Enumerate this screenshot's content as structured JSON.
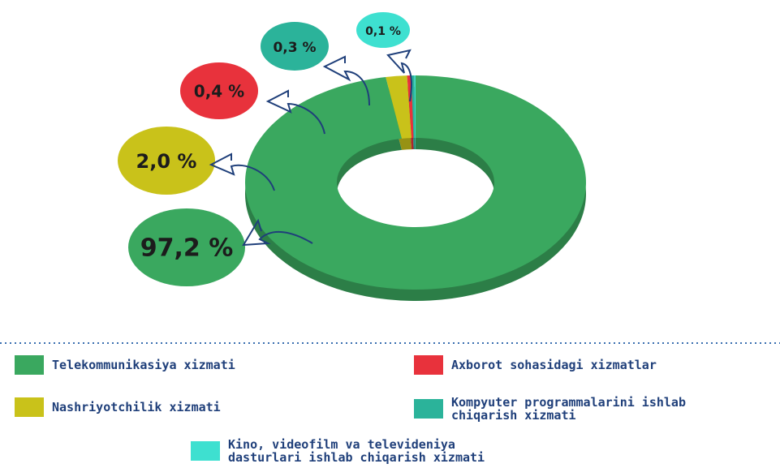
{
  "chart_data": {
    "type": "donut",
    "series": [
      {
        "name": "Telekommunikasiya xizmati",
        "color": "#3aa85f",
        "values": [
          97.2
        ],
        "value_labels": [
          "97,2 %"
        ]
      },
      {
        "name": "Nashriyotchilik xizmati",
        "color": "#c9c21a",
        "values": [
          2.0
        ],
        "value_labels": [
          "2,0 %"
        ]
      },
      {
        "name": "Axborot sohasidagi xizmatlar",
        "color": "#e8323c",
        "values": [
          0.4
        ],
        "value_labels": [
          "0,4 %"
        ]
      },
      {
        "name": "Kompyuter programmalarini ishlab chiqarish xizmati",
        "color": "#2bb39a",
        "values": [
          0.3
        ],
        "value_labels": [
          "0,3 %"
        ]
      },
      {
        "name": "Kino, videofilm va televideniya dasturlari  ishlab chiqarish xizmati",
        "color": "#3ee0d0",
        "values": [
          0.1
        ],
        "value_labels": [
          "0,1 %"
        ]
      }
    ]
  }
}
